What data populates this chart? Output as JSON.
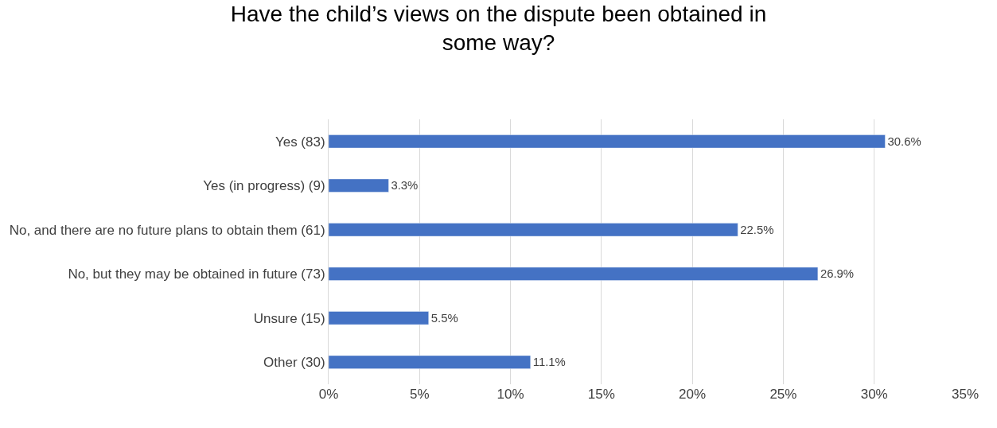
{
  "chart_data": {
    "type": "bar",
    "orientation": "horizontal",
    "title": "Have the child’s views on the dispute been obtained in some way?",
    "categories": [
      "Yes (83)",
      "Yes (in progress) (9)",
      "No, and there are no future plans to obtain them (61)",
      "No, but they may be obtained in future (73)",
      "Unsure (15)",
      "Other (30)"
    ],
    "values": [
      30.6,
      3.3,
      22.5,
      26.9,
      5.5,
      11.1
    ],
    "value_labels": [
      "30.6%",
      "3.3%",
      "22.5%",
      "26.9%",
      "5.5%",
      "11.1%"
    ],
    "color": "#4472c4",
    "xlim": [
      0,
      35
    ],
    "xticks": [
      {
        "value": 0,
        "label": "0%"
      },
      {
        "value": 5,
        "label": "5%"
      },
      {
        "value": 10,
        "label": "10%"
      },
      {
        "value": 15,
        "label": "15%"
      },
      {
        "value": 20,
        "label": "20%"
      },
      {
        "value": 25,
        "label": "25%"
      },
      {
        "value": 30,
        "label": "30%"
      },
      {
        "value": 35,
        "label": "35%"
      }
    ],
    "grid": "x",
    "legend": false
  }
}
